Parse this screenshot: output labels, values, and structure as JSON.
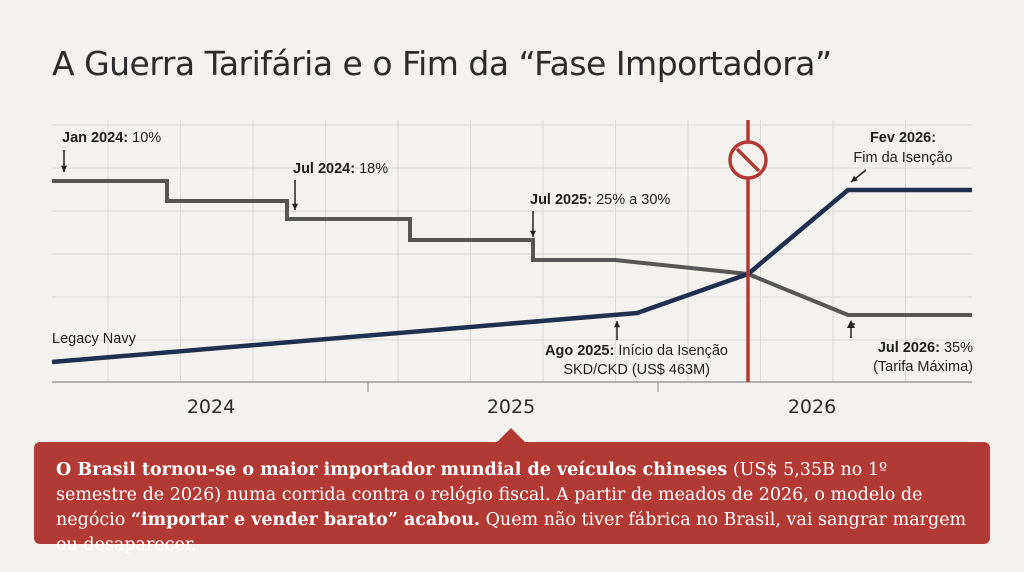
{
  "page": {
    "title": "A Guerra Tarifária e o Fim da “Fase Importadora”"
  },
  "chart_data": {
    "type": "line",
    "x_ticks": [
      "2024",
      "2025",
      "2026"
    ],
    "grid": true,
    "series": [
      {
        "name": "Legacy Navy",
        "color": "#1e2f4f",
        "points": [
          {
            "x": "2023-10",
            "y": 0
          },
          {
            "x": "2025-08",
            "y": 463
          },
          {
            "x": "2026-01",
            "y": 800
          },
          {
            "x": "2026-04",
            "y": 1360
          },
          {
            "x": "2026-12",
            "y": 1360
          }
        ]
      },
      {
        "color": "#555555",
        "points": [
          {
            "x": "2023-10",
            "y": 10
          },
          {
            "x": "2024-03",
            "y": 10
          },
          {
            "x": "2024-03",
            "y": 12
          },
          {
            "x": "2024-07",
            "y": 12
          },
          {
            "x": "2024-07",
            "y": 18
          },
          {
            "x": "2024-11",
            "y": 18
          },
          {
            "x": "2024-11",
            "y": 20
          },
          {
            "x": "2025-03",
            "y": 20
          },
          {
            "x": "2025-03",
            "y": 25
          },
          {
            "x": "2025-07",
            "y": 25
          },
          {
            "x": "2026-01",
            "y": 30
          },
          {
            "x": "2026-04",
            "y": 35
          },
          {
            "x": "2026-12",
            "y": 35
          }
        ]
      }
    ],
    "marker": {
      "x": "2026-01",
      "color": "#b13a34",
      "icon": "no-entry-icon"
    },
    "annotations": {
      "jan2024": {
        "bold": "Jan 2024:",
        "text": " 10%"
      },
      "jul2024": {
        "bold": "Jul 2024:",
        "text": " 18%"
      },
      "jul2025": {
        "bold": "Jul 2025:",
        "text": " 25% a 30%"
      },
      "fev2026_bold": "Fev 2026:",
      "fev2026_text": "Fim da Isenção",
      "ago2025": {
        "bold": "Ago 2025:",
        "text": " Início da Isenção"
      },
      "ago2025_line2": "SKD/CKD (US$ 463M)",
      "jul2026": {
        "bold": "Jul 2026:",
        "text": " 35%"
      },
      "jul2026_line2": "(Tarifa Máxima)"
    }
  },
  "callout": {
    "bold1": "O Brasil tornou-se o maior importador mundial de veículos chineses",
    "text1": " (US$ 5,35B no 1º semestre de 2026) numa corrida contra o relógio fiscal. A partir de meados de 2026, o modelo de negócio ",
    "bold2": "“importar e vender barato” acabou.",
    "text2": " Quem não tiver fábrica no Brasil, vai sangrar margem ou desaparecer."
  }
}
